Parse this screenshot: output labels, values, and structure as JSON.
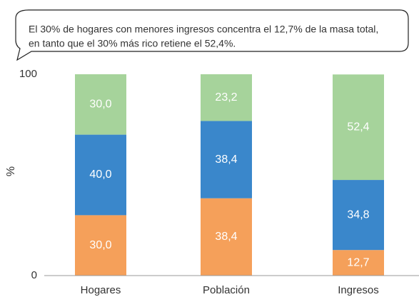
{
  "chart_data": {
    "type": "stacked_bar",
    "annotation": [
      "El 30% de hogares con menores ingresos concentra el 12,7% de la masa total,",
      "en tanto que el 30% más rico retiene el 52,4%."
    ],
    "y_label": "%",
    "categories": [
      "Hogares",
      "Población",
      "Ingresos"
    ],
    "series": [
      {
        "color": "#f5a05a",
        "values": [
          30.0,
          38.4,
          12.7
        ],
        "value_labels": [
          "30,0",
          "38,4",
          "12,7"
        ]
      },
      {
        "color": "#3a87cb",
        "values": [
          40.0,
          38.4,
          34.8
        ],
        "value_labels": [
          "40,0",
          "38,4",
          "34,8"
        ]
      },
      {
        "color": "#a6d39b",
        "values": [
          30.0,
          23.2,
          52.4
        ],
        "value_labels": [
          "30,0",
          "23,2",
          "52,4"
        ]
      }
    ],
    "ylim": [
      0,
      100
    ],
    "yticks": [
      0,
      100
    ]
  }
}
